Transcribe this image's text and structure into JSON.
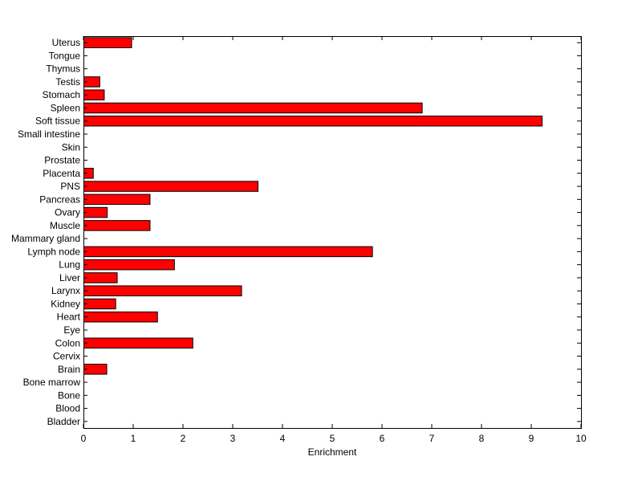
{
  "chart_data": {
    "type": "bar",
    "orientation": "horizontal",
    "title": "",
    "xlabel": "Enrichment",
    "ylabel": "",
    "xlim": [
      0,
      10
    ],
    "xticks": [
      "0",
      "1",
      "2",
      "3",
      "4",
      "5",
      "6",
      "7",
      "8",
      "9",
      "10"
    ],
    "grid": false,
    "legend": "none",
    "bar_color": "#ff0000",
    "bar_edge_color": "#000000",
    "categories": [
      "Bladder",
      "Blood",
      "Bone",
      "Bone marrow",
      "Brain",
      "Cervix",
      "Colon",
      "Eye",
      "Heart",
      "Kidney",
      "Larynx",
      "Liver",
      "Lung",
      "Lymph node",
      "Mammary gland",
      "Muscle",
      "Ovary",
      "Pancreas",
      "PNS",
      "Placenta",
      "Prostate",
      "Skin",
      "Small intestine",
      "Soft tissue",
      "Spleen",
      "Stomach",
      "Testis",
      "Thymus",
      "Tongue",
      "Uterus"
    ],
    "values": [
      0,
      0,
      0,
      0,
      0.46,
      0,
      2.19,
      0,
      1.48,
      0.64,
      3.17,
      0.67,
      1.82,
      5.8,
      0,
      1.33,
      0.47,
      1.33,
      3.5,
      0.19,
      0,
      0,
      0,
      9.21,
      6.8,
      0.41,
      0.32,
      0,
      0,
      0.96
    ]
  }
}
